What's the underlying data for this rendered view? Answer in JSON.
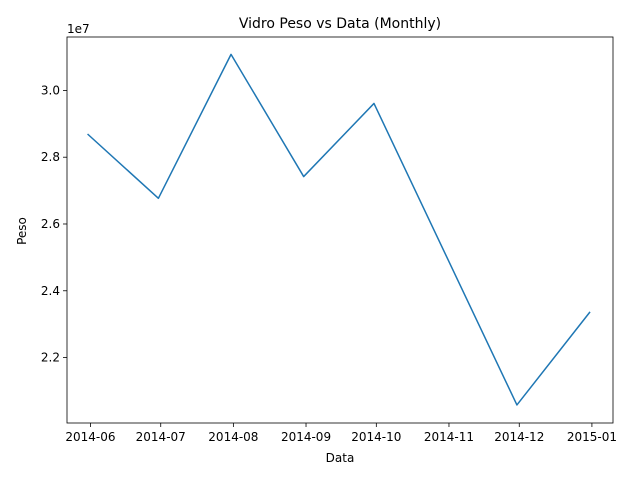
{
  "chart_data": {
    "type": "line",
    "title": "Vidro Peso vs Data (Monthly)",
    "xlabel": "Data",
    "ylabel": "Peso",
    "y_offset_label": "1e7",
    "x_ticks": [
      "2014-06",
      "2014-07",
      "2014-08",
      "2014-09",
      "2014-10",
      "2014-11",
      "2014-12",
      "2015-01"
    ],
    "y_ticks": [
      "2.2",
      "2.4",
      "2.6",
      "2.8",
      "3.0"
    ],
    "y_tick_values": [
      22000000,
      24000000,
      26000000,
      28000000,
      30000000
    ],
    "ylim": [
      20040000,
      31600000
    ],
    "xlim": [
      "2014-05-22",
      "2015-01-10"
    ],
    "grid": false,
    "series": [
      {
        "color": "#1f77b4",
        "x": [
          "2014-05-31",
          "2014-06-30",
          "2014-07-31",
          "2014-08-31",
          "2014-09-30",
          "2014-10-31",
          "2014-11-30",
          "2014-12-31"
        ],
        "values": [
          28680000,
          26770000,
          31080000,
          27420000,
          29610000,
          25020000,
          20580000,
          23350000
        ]
      }
    ]
  }
}
